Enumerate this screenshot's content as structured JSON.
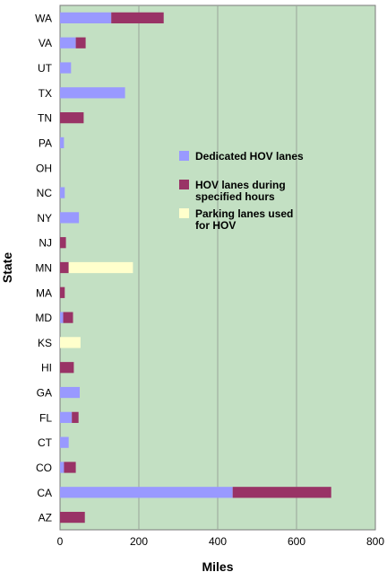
{
  "chart_data": {
    "type": "bar",
    "orientation": "horizontal",
    "stacked": true,
    "categories": [
      "WA",
      "VA",
      "UT",
      "TX",
      "TN",
      "PA",
      "OH",
      "NC",
      "NY",
      "NJ",
      "MN",
      "MA",
      "MD",
      "KS",
      "HI",
      "GA",
      "FL",
      "CT",
      "CO",
      "CA",
      "AZ"
    ],
    "series": [
      {
        "name": "Dedicated HOV lanes",
        "color": "#9999ff",
        "values": [
          130,
          40,
          28,
          165,
          0,
          10,
          0,
          12,
          48,
          0,
          0,
          0,
          8,
          0,
          0,
          50,
          30,
          22,
          10,
          438,
          0
        ]
      },
      {
        "name": "HOV lanes during specified hours",
        "color": "#993366",
        "values": [
          133,
          25,
          0,
          0,
          60,
          0,
          0,
          0,
          0,
          15,
          22,
          12,
          25,
          0,
          35,
          0,
          17,
          0,
          30,
          250,
          63
        ]
      },
      {
        "name": "Parking lanes used for HOV",
        "color": "#ffffcc",
        "values": [
          0,
          0,
          0,
          0,
          0,
          0,
          0,
          0,
          0,
          0,
          163,
          0,
          0,
          52,
          0,
          0,
          0,
          0,
          0,
          0,
          0
        ]
      }
    ],
    "xlabel": "Miles",
    "ylabel": "State",
    "xlim": [
      0,
      800
    ],
    "xticks": [
      "0",
      "200",
      "400",
      "600",
      "800"
    ],
    "grid": "vertical gridlines",
    "legend_position": "right",
    "plot_background": "#c3e0c3"
  }
}
